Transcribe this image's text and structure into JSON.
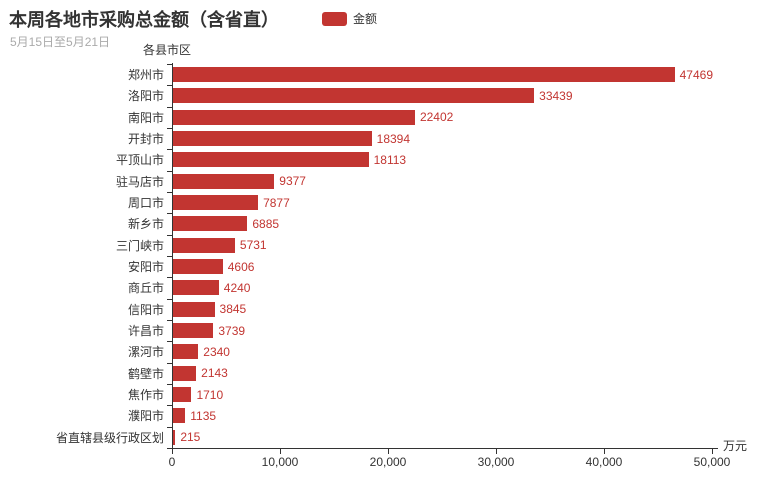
{
  "header": {
    "title": "本周各地市采购总金额（含省直）",
    "subtitle": "5月15日至5月21日"
  },
  "legend": {
    "label": "金额",
    "swatch_color": "#c23531"
  },
  "colors": {
    "bar": "#c23531",
    "value_label": "#c23531",
    "axis": "#333333",
    "title": "#333333",
    "subtitle": "#aaaaaa",
    "background": "#ffffff"
  },
  "chart_data": {
    "type": "bar",
    "orientation": "horizontal",
    "title": "本周各地市采购总金额（含省直）",
    "subtitle": "5月15日至5月21日",
    "series_name": "金额",
    "categories": [
      "郑州市",
      "洛阳市",
      "南阳市",
      "开封市",
      "平顶山市",
      "驻马店市",
      "周口市",
      "新乡市",
      "三门峡市",
      "安阳市",
      "商丘市",
      "信阳市",
      "许昌市",
      "漯河市",
      "鹤壁市",
      "焦作市",
      "濮阳市",
      "省直辖县级行政区划"
    ],
    "values": [
      47469,
      33439,
      22402,
      18394,
      18113,
      9377,
      7877,
      6885,
      5731,
      4606,
      4240,
      3845,
      3739,
      2340,
      2143,
      1710,
      1135,
      215
    ],
    "xlabel": "万元",
    "ylabel": "各县市区",
    "xlim": [
      0,
      50000
    ],
    "x_ticks": [
      "0",
      "10,000",
      "20,000",
      "30,000",
      "40,000",
      "50,000"
    ],
    "grid": false,
    "legend_position": "top-center",
    "value_labels_position": "right-of-bar"
  }
}
